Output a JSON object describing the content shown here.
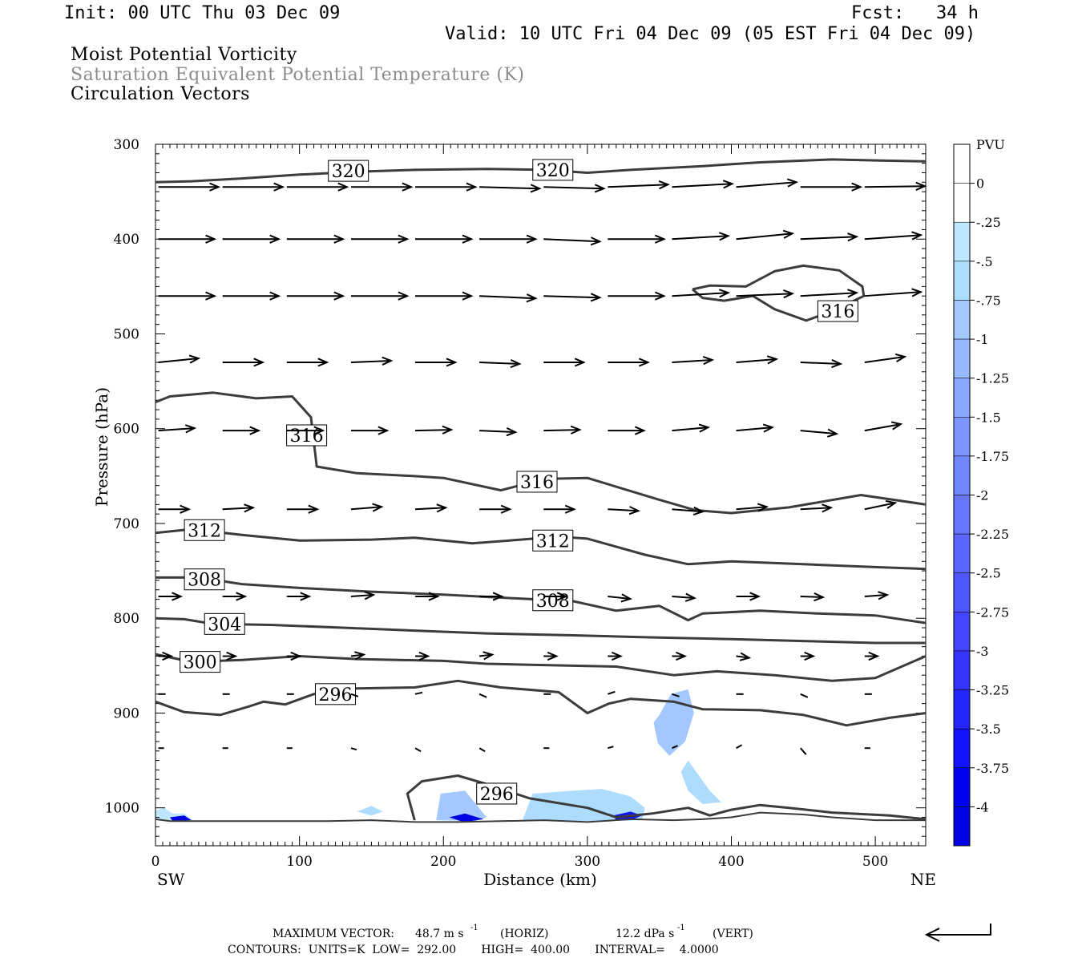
{
  "header": {
    "init": "Init: 00 UTC Thu 03 Dec 09",
    "fcst": "Fcst:   34 h",
    "valid": "Valid: 10 UTC Fri 04 Dec 09 (05 EST Fri 04 Dec 09)"
  },
  "fields": {
    "line1": "Moist Potential Vorticity",
    "line2": "Saturation Equivalent Potential Temperature (K)",
    "line3": "Circulation Vectors"
  },
  "footer": {
    "max_vector_label": "MAXIMUM VECTOR:",
    "max_horiz": "48.7 m s",
    "horiz_unit": "(HORIZ)",
    "max_vert": "12.2 dPa s",
    "vert_unit": "(VERT)",
    "exponent": "-1",
    "contours_line": "CONTOURS:  UNITS=K  LOW=  292.00       HIGH=  400.00       INTERVAL=    4.0000"
  },
  "colors": {
    "contour": "#3c3c3c",
    "vector": "#000000",
    "pv_scale": [
      "#ffffff",
      "#ffffff",
      "#bde6ff",
      "#aedcff",
      "#a3c8ff",
      "#98b8ff",
      "#8aa6ff",
      "#7e96ff",
      "#7286ff",
      "#6676ff",
      "#5a66ff",
      "#4e56ff",
      "#4244ff",
      "#3434ff",
      "#2424ff",
      "#1212ff",
      "#0000f0",
      "#0000e0"
    ]
  },
  "chart_data": {
    "type": "cross-section",
    "xlabel": "Distance (km)",
    "ylabel": "Pressure (hPa)",
    "xlim": [
      0,
      535
    ],
    "ylim": [
      1040,
      300
    ],
    "x_ticks": [
      "0",
      "100",
      "200",
      "300",
      "400",
      "500"
    ],
    "y_ticks": [
      "300",
      "400",
      "500",
      "600",
      "700",
      "800",
      "900",
      "1000"
    ],
    "x_ends": {
      "left": "SW",
      "right": "NE"
    },
    "colorbar": {
      "label": "PVU",
      "tick_labels": [
        "0",
        "-.25",
        "-.5",
        "-.75",
        "-1",
        "-1.25",
        "-1.5",
        "-1.75",
        "-2",
        "-2.25",
        "-2.5",
        "-2.75",
        "-3",
        "-3.25",
        "-3.5",
        "-3.75",
        "-4"
      ]
    },
    "contours": [
      {
        "value": 320,
        "labels": [
          {
            "text": "320",
            "x": 134,
            "p": 328
          },
          {
            "text": "320",
            "x": 276,
            "p": 327
          }
        ],
        "points": [
          [
            0,
            340
          ],
          [
            25,
            339
          ],
          [
            60,
            336
          ],
          [
            100,
            332
          ],
          [
            140,
            329
          ],
          [
            180,
            327
          ],
          [
            230,
            326
          ],
          [
            270,
            327
          ],
          [
            300,
            330
          ],
          [
            330,
            327
          ],
          [
            380,
            323
          ],
          [
            420,
            319
          ],
          [
            470,
            316
          ],
          [
            500,
            317
          ],
          [
            535,
            318
          ]
        ]
      },
      {
        "value": 316,
        "labels": [
          {
            "text": "316",
            "x": 105,
            "p": 607
          },
          {
            "text": "316",
            "x": 265,
            "p": 656
          }
        ],
        "points": [
          [
            0,
            572
          ],
          [
            10,
            566
          ],
          [
            40,
            562
          ],
          [
            70,
            568
          ],
          [
            95,
            566
          ],
          [
            108,
            588
          ],
          [
            112,
            640
          ],
          [
            140,
            647
          ],
          [
            180,
            650
          ],
          [
            200,
            652
          ],
          [
            240,
            665
          ],
          [
            270,
            653
          ],
          [
            300,
            652
          ],
          [
            350,
            675
          ],
          [
            375,
            686
          ],
          [
            400,
            689
          ],
          [
            440,
            683
          ],
          [
            490,
            670
          ],
          [
            535,
            680
          ]
        ]
      },
      {
        "value": 316,
        "labels": [
          {
            "text": "316",
            "x": 474,
            "p": 476
          }
        ],
        "points": [
          [
            373,
            453
          ],
          [
            385,
            449
          ],
          [
            410,
            450
          ],
          [
            430,
            434
          ],
          [
            450,
            428
          ],
          [
            475,
            433
          ],
          [
            491,
            450
          ],
          [
            492,
            460
          ],
          [
            470,
            476
          ],
          [
            452,
            486
          ],
          [
            430,
            474
          ],
          [
            415,
            460
          ],
          [
            395,
            465
          ],
          [
            380,
            462
          ],
          [
            373,
            453
          ]
        ]
      },
      {
        "value": 312,
        "labels": [
          {
            "text": "312",
            "x": 34,
            "p": 707
          },
          {
            "text": "312",
            "x": 276,
            "p": 718
          }
        ],
        "points": [
          [
            0,
            710
          ],
          [
            25,
            706
          ],
          [
            60,
            712
          ],
          [
            100,
            718
          ],
          [
            150,
            717
          ],
          [
            180,
            715
          ],
          [
            220,
            721
          ],
          [
            280,
            714
          ],
          [
            300,
            716
          ],
          [
            340,
            733
          ],
          [
            370,
            743
          ],
          [
            400,
            740
          ],
          [
            450,
            743
          ],
          [
            500,
            746
          ],
          [
            535,
            748
          ]
        ]
      },
      {
        "value": 308,
        "labels": [
          {
            "text": "308",
            "x": 34,
            "p": 759
          },
          {
            "text": "308",
            "x": 276,
            "p": 781
          }
        ],
        "points": [
          [
            0,
            757
          ],
          [
            30,
            757
          ],
          [
            60,
            764
          ],
          [
            100,
            768
          ],
          [
            150,
            772
          ],
          [
            200,
            775
          ],
          [
            250,
            779
          ],
          [
            290,
            782
          ],
          [
            320,
            792
          ],
          [
            350,
            787
          ],
          [
            370,
            802
          ],
          [
            380,
            795
          ],
          [
            420,
            792
          ],
          [
            460,
            795
          ],
          [
            500,
            797
          ],
          [
            535,
            805
          ]
        ]
      },
      {
        "value": 304,
        "labels": [
          {
            "text": "304",
            "x": 48,
            "p": 806
          }
        ],
        "points": [
          [
            0,
            800
          ],
          [
            20,
            801
          ],
          [
            40,
            806
          ],
          [
            80,
            807
          ],
          [
            130,
            810
          ],
          [
            180,
            813
          ],
          [
            230,
            816
          ],
          [
            290,
            818
          ],
          [
            340,
            820
          ],
          [
            400,
            822
          ],
          [
            450,
            824
          ],
          [
            500,
            826
          ],
          [
            535,
            826
          ]
        ]
      },
      {
        "value": 300,
        "labels": [
          {
            "text": "300",
            "x": 31,
            "p": 846
          }
        ],
        "points": [
          [
            0,
            838
          ],
          [
            25,
            846
          ],
          [
            60,
            844
          ],
          [
            100,
            840
          ],
          [
            140,
            843
          ],
          [
            200,
            845
          ],
          [
            230,
            848
          ],
          [
            260,
            849
          ],
          [
            320,
            851
          ],
          [
            360,
            860
          ],
          [
            390,
            856
          ],
          [
            430,
            860
          ],
          [
            470,
            866
          ],
          [
            500,
            863
          ],
          [
            535,
            840
          ]
        ]
      },
      {
        "value": 296,
        "labels": [
          {
            "text": "296",
            "x": 125,
            "p": 880
          }
        ],
        "points": [
          [
            0,
            888
          ],
          [
            20,
            899
          ],
          [
            45,
            902
          ],
          [
            65,
            893
          ],
          [
            75,
            888
          ],
          [
            90,
            891
          ],
          [
            110,
            880
          ],
          [
            140,
            874
          ],
          [
            180,
            873
          ],
          [
            210,
            866
          ],
          [
            240,
            873
          ],
          [
            280,
            878
          ],
          [
            300,
            900
          ],
          [
            315,
            890
          ],
          [
            330,
            885
          ],
          [
            360,
            888
          ],
          [
            380,
            896
          ],
          [
            420,
            897
          ],
          [
            450,
            902
          ],
          [
            480,
            913
          ],
          [
            510,
            905
          ],
          [
            535,
            900
          ]
        ]
      },
      {
        "value": 296,
        "labels": [
          {
            "text": "296",
            "x": 237,
            "p": 985
          }
        ],
        "points": [
          [
            180,
            1013
          ],
          [
            175,
            985
          ],
          [
            185,
            972
          ],
          [
            210,
            966
          ],
          [
            230,
            975
          ],
          [
            260,
            990
          ],
          [
            300,
            1000
          ],
          [
            320,
            1010
          ],
          [
            345,
            1006
          ],
          [
            370,
            1000
          ],
          [
            385,
            1008
          ],
          [
            400,
            1002
          ],
          [
            420,
            997
          ],
          [
            440,
            1000
          ],
          [
            470,
            1005
          ],
          [
            510,
            1008
          ],
          [
            535,
            1012
          ]
        ]
      },
      {
        "value": 292,
        "labels": [],
        "points": [
          [
            0,
            1012
          ],
          [
            10,
            1014
          ],
          [
            30,
            1014
          ],
          [
            60,
            1014
          ],
          [
            90,
            1014
          ],
          [
            120,
            1014
          ],
          [
            150,
            1013
          ],
          [
            180,
            1015
          ],
          [
            210,
            1015
          ],
          [
            240,
            1014
          ],
          [
            270,
            1013
          ],
          [
            300,
            1015
          ],
          [
            330,
            1012
          ],
          [
            360,
            1013
          ],
          [
            380,
            1012
          ],
          [
            400,
            1010
          ],
          [
            420,
            1005
          ],
          [
            450,
            1007
          ],
          [
            470,
            1010
          ],
          [
            500,
            1013
          ],
          [
            535,
            1013
          ]
        ]
      }
    ],
    "pv_regions": [
      {
        "level": 3,
        "points": [
          [
            350,
            902
          ],
          [
            358,
            880
          ],
          [
            370,
            875
          ],
          [
            374,
            900
          ],
          [
            368,
            930
          ],
          [
            357,
            945
          ],
          [
            349,
            932
          ],
          [
            346,
            910
          ]
        ]
      },
      {
        "level": 2,
        "points": [
          [
            255,
            1013
          ],
          [
            262,
            985
          ],
          [
            290,
            982
          ],
          [
            310,
            980
          ],
          [
            330,
            988
          ],
          [
            340,
            1000
          ],
          [
            338,
            1013
          ],
          [
            310,
            1014
          ],
          [
            280,
            1014
          ]
        ]
      },
      {
        "level": 3,
        "points": [
          [
            195,
            1013
          ],
          [
            198,
            985
          ],
          [
            215,
            982
          ],
          [
            222,
            995
          ],
          [
            230,
            1010
          ],
          [
            222,
            1014
          ]
        ]
      },
      {
        "level": 2,
        "points": [
          [
            365,
            962
          ],
          [
            370,
            950
          ],
          [
            385,
            982
          ],
          [
            393,
            994
          ],
          [
            380,
            996
          ],
          [
            370,
            982
          ]
        ]
      },
      {
        "level": 2,
        "points": [
          [
            140,
            1004
          ],
          [
            150,
            998
          ],
          [
            158,
            1004
          ],
          [
            150,
            1008
          ]
        ]
      },
      {
        "level": 1,
        "points": [
          [
            0,
            1003
          ],
          [
            6,
            1000
          ],
          [
            12,
            1006
          ],
          [
            20,
            1006
          ],
          [
            26,
            1013
          ],
          [
            8,
            1014
          ],
          [
            0,
            1013
          ]
        ]
      },
      {
        "level": 16,
        "points": [
          [
            204,
            1010
          ],
          [
            215,
            1006
          ],
          [
            228,
            1012
          ],
          [
            214,
            1015
          ]
        ]
      },
      {
        "level": 14,
        "points": [
          [
            318,
            1008
          ],
          [
            330,
            1004
          ],
          [
            338,
            1008
          ],
          [
            330,
            1013
          ],
          [
            320,
            1013
          ]
        ]
      },
      {
        "level": 16,
        "points": [
          [
            10,
            1010
          ],
          [
            20,
            1008
          ],
          [
            25,
            1013
          ],
          [
            12,
            1014
          ]
        ]
      }
    ],
    "vectors": [
      {
        "p": 345,
        "u": 4.5,
        "w": 0
      },
      {
        "p": 400,
        "u": 4.5,
        "w": 0
      },
      {
        "p": 460,
        "u": 4.5,
        "w": 0
      },
      {
        "p": 530,
        "u": 4.5,
        "w": 0.2
      },
      {
        "p": 602,
        "u": 4.2,
        "w": 0.2
      }
    ],
    "colorbar_range": [
      0,
      -4
    ]
  }
}
